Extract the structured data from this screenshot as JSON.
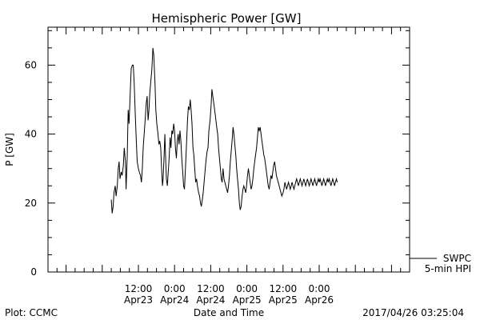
{
  "chart_data": {
    "type": "line",
    "title": "Hemispheric Power [GW]",
    "xlabel": "Date and Time",
    "ylabel": "P [GW]",
    "ylim": [
      0,
      71
    ],
    "xlim_hours": [
      -18,
      102
    ],
    "yticks": [
      0,
      20,
      40,
      60
    ],
    "xticks": [
      {
        "t": 12,
        "time": "12:00",
        "date": "Apr23"
      },
      {
        "t": 24,
        "time": "0:00",
        "date": "Apr24"
      },
      {
        "t": 36,
        "time": "12:00",
        "date": "Apr24"
      },
      {
        "t": 48,
        "time": "0:00",
        "date": "Apr25"
      },
      {
        "t": 60,
        "time": "12:00",
        "date": "Apr25"
      },
      {
        "t": 72,
        "time": "0:00",
        "date": "Apr26"
      }
    ],
    "legend": {
      "position": "bottom-right",
      "source": "SWPC",
      "series_label": "5-min HPI"
    },
    "footer_left": "Plot: CCMC",
    "footer_right": "2017/04/26 03:25:04",
    "grid": false,
    "series": [
      {
        "name": "5-min HPI",
        "color": "#000000",
        "points": [
          [
            3.0,
            21
          ],
          [
            3.3,
            17
          ],
          [
            3.6,
            19
          ],
          [
            3.9,
            23
          ],
          [
            4.3,
            25
          ],
          [
            4.6,
            22
          ],
          [
            5.0,
            25
          ],
          [
            5.3,
            30
          ],
          [
            5.6,
            32
          ],
          [
            5.9,
            27
          ],
          [
            6.3,
            29
          ],
          [
            6.6,
            28
          ],
          [
            7.0,
            31
          ],
          [
            7.3,
            36
          ],
          [
            7.7,
            32
          ],
          [
            7.9,
            24
          ],
          [
            8.3,
            34
          ],
          [
            8.6,
            47
          ],
          [
            8.9,
            43
          ],
          [
            9.3,
            52
          ],
          [
            9.6,
            59
          ],
          [
            10.0,
            60
          ],
          [
            10.3,
            60
          ],
          [
            10.6,
            55
          ],
          [
            11.0,
            45
          ],
          [
            11.3,
            38
          ],
          [
            11.6,
            32
          ],
          [
            12.0,
            30
          ],
          [
            12.3,
            29
          ],
          [
            12.7,
            28
          ],
          [
            13.0,
            26
          ],
          [
            13.3,
            30
          ],
          [
            13.6,
            36
          ],
          [
            13.9,
            40
          ],
          [
            14.3,
            45
          ],
          [
            14.6,
            49
          ],
          [
            14.9,
            51
          ],
          [
            15.2,
            44
          ],
          [
            15.5,
            47
          ],
          [
            15.8,
            52
          ],
          [
            16.1,
            55
          ],
          [
            16.5,
            59
          ],
          [
            16.8,
            65
          ],
          [
            17.1,
            63
          ],
          [
            17.5,
            55
          ],
          [
            17.8,
            47
          ],
          [
            18.1,
            43
          ],
          [
            18.5,
            40
          ],
          [
            18.8,
            37
          ],
          [
            19.1,
            38
          ],
          [
            19.4,
            36
          ],
          [
            19.7,
            30
          ],
          [
            20.0,
            25
          ],
          [
            20.2,
            27
          ],
          [
            20.5,
            33
          ],
          [
            20.8,
            40
          ],
          [
            21.0,
            34
          ],
          [
            21.3,
            27
          ],
          [
            21.6,
            25
          ],
          [
            21.9,
            29
          ],
          [
            22.2,
            33
          ],
          [
            22.5,
            39
          ],
          [
            22.8,
            36
          ],
          [
            23.1,
            41
          ],
          [
            23.4,
            40
          ],
          [
            23.7,
            43
          ],
          [
            24.0,
            41
          ],
          [
            24.3,
            36
          ],
          [
            24.6,
            33
          ],
          [
            24.9,
            38
          ],
          [
            25.2,
            40
          ],
          [
            25.5,
            37
          ],
          [
            25.8,
            41
          ],
          [
            26.1,
            38
          ],
          [
            26.4,
            33
          ],
          [
            26.7,
            29
          ],
          [
            27.0,
            25
          ],
          [
            27.3,
            24
          ],
          [
            27.6,
            30
          ],
          [
            28.0,
            38
          ],
          [
            28.3,
            44
          ],
          [
            28.6,
            48
          ],
          [
            28.9,
            47
          ],
          [
            29.2,
            50
          ],
          [
            29.5,
            47
          ],
          [
            29.8,
            43
          ],
          [
            30.1,
            36
          ],
          [
            30.4,
            34
          ],
          [
            30.7,
            30
          ],
          [
            31.0,
            26
          ],
          [
            31.3,
            27
          ],
          [
            31.6,
            25
          ],
          [
            32.0,
            23
          ],
          [
            32.3,
            22
          ],
          [
            32.6,
            20
          ],
          [
            32.9,
            19
          ],
          [
            33.2,
            21
          ],
          [
            33.5,
            23
          ],
          [
            33.8,
            26
          ],
          [
            34.2,
            30
          ],
          [
            34.5,
            33
          ],
          [
            34.8,
            35
          ],
          [
            35.1,
            36
          ],
          [
            35.4,
            41
          ],
          [
            35.8,
            44
          ],
          [
            36.1,
            48
          ],
          [
            36.4,
            53
          ],
          [
            36.7,
            51
          ],
          [
            37.0,
            49
          ],
          [
            37.3,
            47
          ],
          [
            37.6,
            45
          ],
          [
            38.0,
            42
          ],
          [
            38.3,
            40
          ],
          [
            38.6,
            36
          ],
          [
            38.9,
            33
          ],
          [
            39.2,
            30
          ],
          [
            39.5,
            27
          ],
          [
            39.8,
            26
          ],
          [
            40.1,
            30
          ],
          [
            40.4,
            27
          ],
          [
            40.7,
            26
          ],
          [
            41.0,
            25
          ],
          [
            41.3,
            24
          ],
          [
            41.6,
            23
          ],
          [
            41.9,
            25
          ],
          [
            42.2,
            28
          ],
          [
            42.5,
            32
          ],
          [
            42.8,
            35
          ],
          [
            43.1,
            38
          ],
          [
            43.4,
            42
          ],
          [
            43.7,
            40
          ],
          [
            44.0,
            37
          ],
          [
            44.3,
            34
          ],
          [
            44.6,
            30
          ],
          [
            44.9,
            27
          ],
          [
            45.2,
            24
          ],
          [
            45.5,
            20
          ],
          [
            45.8,
            18
          ],
          [
            46.1,
            19
          ],
          [
            46.4,
            22
          ],
          [
            46.7,
            24
          ],
          [
            47.0,
            25
          ],
          [
            47.3,
            24
          ],
          [
            47.6,
            23
          ],
          [
            47.9,
            25
          ],
          [
            48.2,
            28
          ],
          [
            48.5,
            30
          ],
          [
            48.8,
            28
          ],
          [
            49.1,
            26
          ],
          [
            49.4,
            24
          ],
          [
            49.7,
            25
          ],
          [
            50.0,
            27
          ],
          [
            50.3,
            30
          ],
          [
            50.6,
            32
          ],
          [
            50.9,
            34
          ],
          [
            51.2,
            36
          ],
          [
            51.5,
            39
          ],
          [
            51.8,
            42
          ],
          [
            52.1,
            41
          ],
          [
            52.4,
            42
          ],
          [
            52.7,
            40
          ],
          [
            53.0,
            38
          ],
          [
            53.3,
            36
          ],
          [
            53.6,
            34
          ],
          [
            53.9,
            33
          ],
          [
            54.2,
            31
          ],
          [
            54.5,
            29
          ],
          [
            54.8,
            27
          ],
          [
            55.1,
            25
          ],
          [
            55.4,
            24
          ],
          [
            55.7,
            26
          ],
          [
            56.0,
            28
          ],
          [
            56.3,
            27
          ],
          [
            56.6,
            29
          ],
          [
            56.9,
            31
          ],
          [
            57.2,
            32
          ],
          [
            57.5,
            30
          ],
          [
            57.8,
            28
          ],
          [
            58.1,
            27
          ],
          [
            58.4,
            26
          ],
          [
            58.7,
            25
          ],
          [
            59.0,
            24
          ],
          [
            59.3,
            23
          ],
          [
            59.6,
            22
          ],
          [
            60.0,
            23
          ],
          [
            60.3,
            24
          ],
          [
            60.6,
            26
          ],
          [
            60.9,
            25
          ],
          [
            61.2,
            24
          ],
          [
            61.5,
            25
          ],
          [
            61.8,
            26
          ],
          [
            62.1,
            25
          ],
          [
            62.4,
            24
          ],
          [
            62.7,
            25
          ],
          [
            63.0,
            26
          ],
          [
            63.3,
            25
          ],
          [
            63.6,
            24
          ],
          [
            63.9,
            25
          ],
          [
            64.2,
            26
          ],
          [
            64.5,
            27
          ],
          [
            64.8,
            26
          ],
          [
            65.1,
            25
          ],
          [
            65.4,
            26
          ],
          [
            65.7,
            27
          ],
          [
            66.0,
            26
          ],
          [
            66.3,
            25
          ],
          [
            66.6,
            26
          ],
          [
            66.9,
            27
          ],
          [
            67.2,
            26
          ],
          [
            67.5,
            25
          ],
          [
            67.8,
            26
          ],
          [
            68.1,
            27
          ],
          [
            68.4,
            26
          ],
          [
            68.7,
            25
          ],
          [
            69.0,
            26
          ],
          [
            69.3,
            27
          ],
          [
            69.6,
            26
          ],
          [
            69.9,
            25
          ],
          [
            70.2,
            26
          ],
          [
            70.5,
            27
          ],
          [
            70.8,
            26
          ],
          [
            71.1,
            25
          ],
          [
            71.4,
            26
          ],
          [
            71.7,
            27
          ],
          [
            72.0,
            26
          ],
          [
            72.3,
            27
          ],
          [
            72.6,
            26
          ],
          [
            72.9,
            25
          ],
          [
            73.2,
            26
          ],
          [
            73.5,
            27
          ],
          [
            73.8,
            26
          ],
          [
            74.1,
            25
          ],
          [
            74.4,
            26
          ],
          [
            74.7,
            27
          ],
          [
            75.0,
            26
          ],
          [
            75.3,
            27
          ],
          [
            75.6,
            26
          ],
          [
            75.9,
            25
          ],
          [
            76.2,
            26
          ],
          [
            76.5,
            27
          ],
          [
            76.8,
            26
          ],
          [
            77.1,
            25
          ],
          [
            77.4,
            26
          ],
          [
            77.7,
            27
          ],
          [
            78.0,
            26
          ]
        ]
      }
    ]
  }
}
